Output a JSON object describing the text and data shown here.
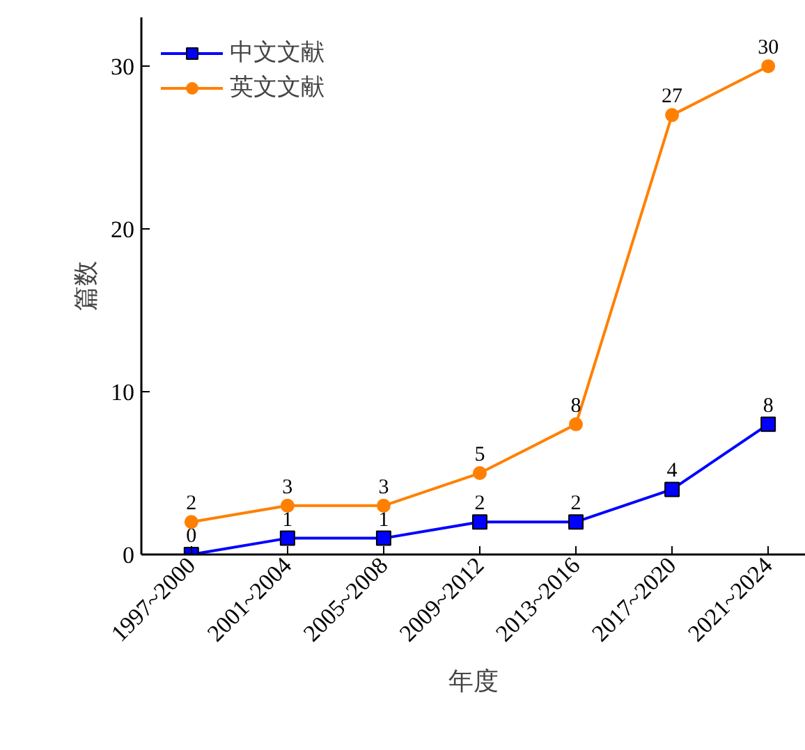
{
  "chart_data": {
    "type": "line",
    "xlabel": "年度",
    "ylabel": "篇数",
    "categories": [
      "1997~2000",
      "2001~2004",
      "2005~2008",
      "2009~2012",
      "2013~2016",
      "2017~2020",
      "2021~2024"
    ],
    "series": [
      {
        "name": "中文文献",
        "color": "#0000ff",
        "marker": "square",
        "values": [
          0,
          1,
          1,
          2,
          2,
          4,
          8
        ]
      },
      {
        "name": "英文文献",
        "color": "#ff8000",
        "marker": "circle",
        "values": [
          2,
          3,
          3,
          5,
          8,
          27,
          30
        ]
      }
    ],
    "ylim": [
      0,
      33
    ],
    "yticks": [
      0,
      10,
      20,
      30
    ],
    "grid": false,
    "legend": "top left",
    "data_labels": true,
    "line_style": "solid"
  }
}
